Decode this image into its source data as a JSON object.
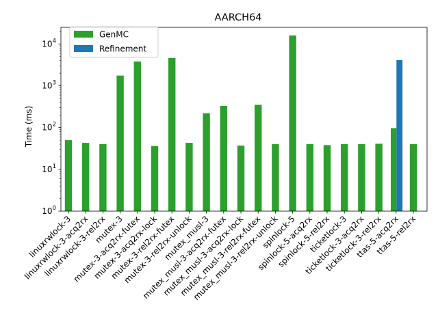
{
  "chart_data": {
    "type": "bar",
    "title": "AARCH64",
    "xlabel": "",
    "ylabel": "Time (ms)",
    "yscale": "log",
    "ylim": [
      1,
      25000
    ],
    "yticks": [
      {
        "value": 1,
        "base": "10",
        "exp": "0"
      },
      {
        "value": 10,
        "base": "10",
        "exp": "1"
      },
      {
        "value": 100,
        "base": "10",
        "exp": "2"
      },
      {
        "value": 1000,
        "base": "10",
        "exp": "3"
      },
      {
        "value": 10000,
        "base": "10",
        "exp": "4"
      }
    ],
    "legend_position": "top-left",
    "grid": false,
    "categories": [
      "linuxrwlock-3",
      "linuxrwlock-3-acq2rx",
      "linuxrwlock-3-rel2rx",
      "mutex-3",
      "mutex-3-acq2rx-futex",
      "mutex-3-acq2rx-lock",
      "mutex-3-rel2rx-futex",
      "mutex-3-rel2rx-unlock",
      "mutex_musl-3",
      "mutex_musl-3-acq2rx-futex",
      "mutex_musl-3-acq2rx-lock",
      "mutex_musl-3-rel2rx-futex",
      "mutex_musl-3-rel2rx-unlock",
      "spinlock-5",
      "spinlock-5-acq2rx",
      "spinlock-5-rel2rx",
      "ticketlock-3",
      "ticketlock-3-acq2rx",
      "ticketlock-3-rel2rx",
      "ttas-5-acq2rx",
      "ttas-5-rel2rx"
    ],
    "series": [
      {
        "name": "GenMC",
        "color": "#2ca02c",
        "values": [
          50,
          43,
          40,
          1750,
          3800,
          36,
          4600,
          43,
          220,
          330,
          37,
          350,
          40,
          16000,
          40,
          38,
          40,
          40,
          41,
          97,
          40
        ]
      },
      {
        "name": "Refinement",
        "color": "#1f77b4",
        "values": [
          null,
          null,
          null,
          null,
          null,
          null,
          null,
          null,
          null,
          null,
          null,
          null,
          null,
          null,
          null,
          null,
          null,
          null,
          null,
          4100,
          null
        ]
      }
    ]
  }
}
